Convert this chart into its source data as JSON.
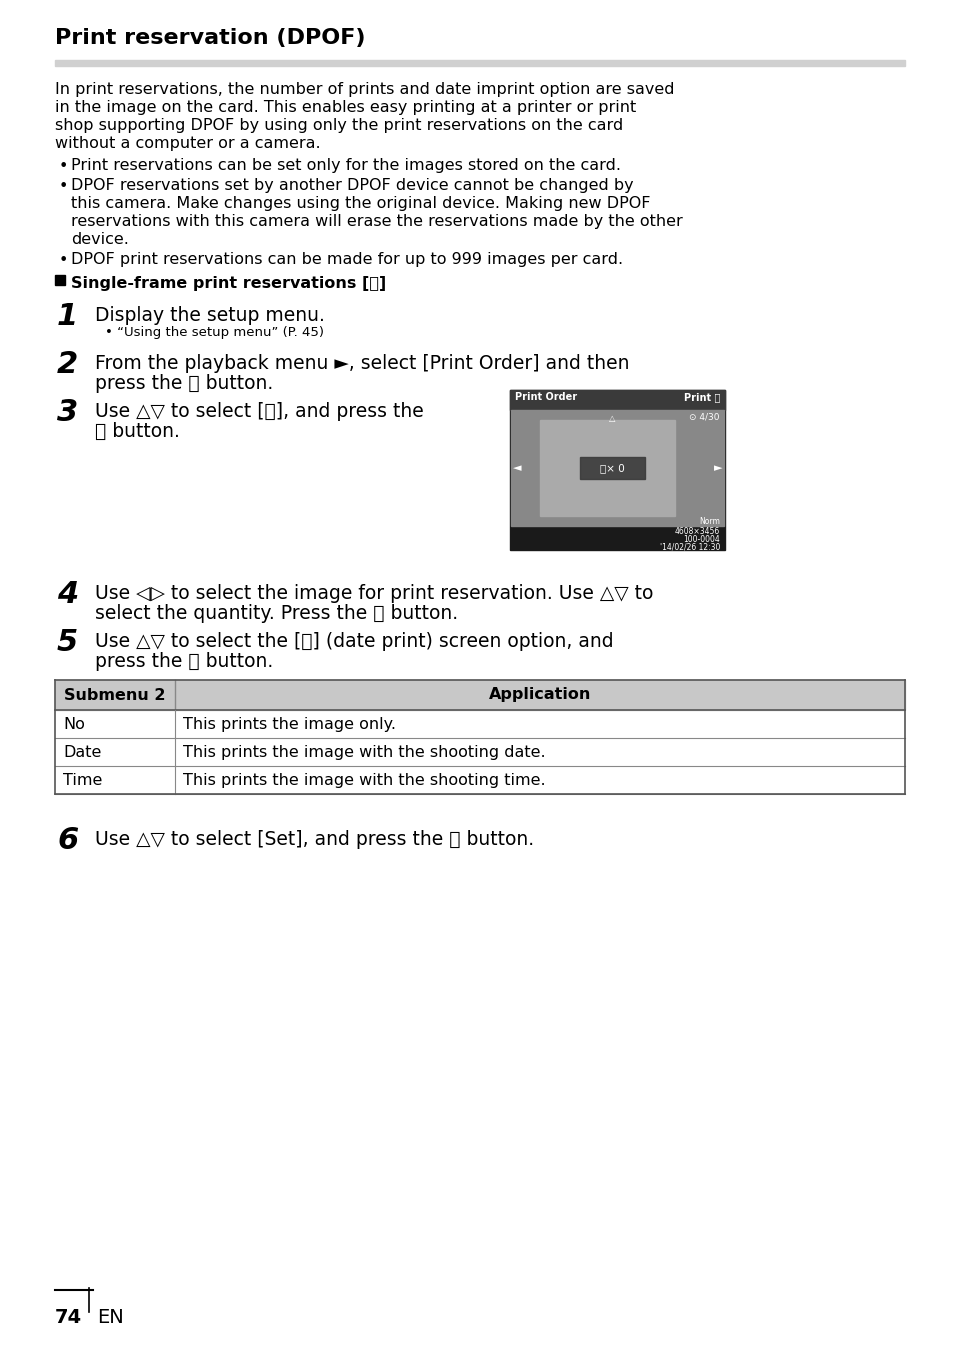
{
  "page_bg": "#ffffff",
  "title": "Print reservation (DPOF)",
  "body_text_color": "#000000",
  "intro_lines": [
    "In print reservations, the number of prints and date imprint option are saved",
    "in the image on the card. This enables easy printing at a printer or print",
    "shop supporting DPOF by using only the print reservations on the card",
    "without a computer or a camera."
  ],
  "bullet1": "Print reservations can be set only for the images stored on the card.",
  "bullet2_lines": [
    "DPOF reservations set by another DPOF device cannot be changed by",
    "this camera. Make changes using the original device. Making new DPOF",
    "reservations with this camera will erase the reservations made by the other",
    "device."
  ],
  "bullet3": "DPOF print reservations can be made for up to 999 images per card.",
  "section_label": "Single-frame print reservations [",
  "step1_main": "Display the setup menu.",
  "step1_sub": "• “Using the setup menu” (P. 45)",
  "step2_line1": "From the playback menu ►, select [Print Order] and then",
  "step2_line2": "press the ⓞ button.",
  "step3_line1": "Use △▽ to select [",
  "step3_line1b": "], and press the",
  "step3_line2": "ⓞ button.",
  "step4_line1": "Use ◁▷ to select the image for print reservation. Use △▽ to",
  "step4_line2": "select the quantity. Press the ⓞ button.",
  "step5_line1": "Use △▽ to select the [⏰] (date print) screen option, and",
  "step5_line2": "press the ⓞ button.",
  "table_col1_header": "Submenu 2",
  "table_col2_header": "Application",
  "table_rows": [
    [
      "No",
      "This prints the image only."
    ],
    [
      "Date",
      "This prints the image with the shooting date."
    ],
    [
      "Time",
      "This prints the image with the shooting time."
    ]
  ],
  "step6_line": "Use △▽ to select [Set], and press the ⓞ button.",
  "footer_num": "74",
  "footer_lang": "EN"
}
